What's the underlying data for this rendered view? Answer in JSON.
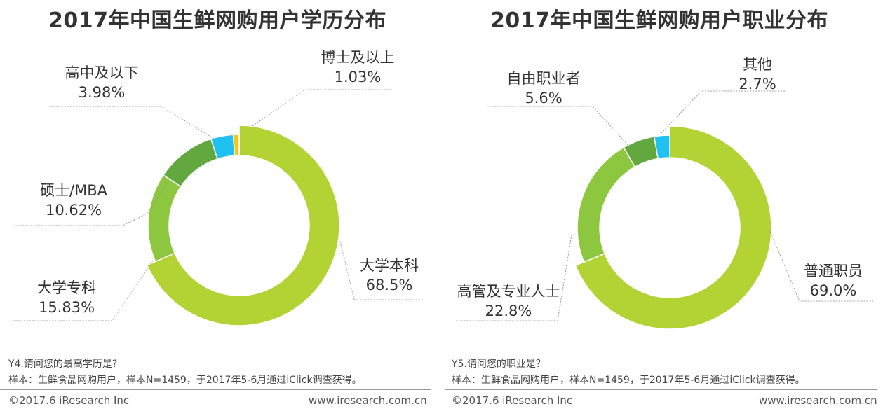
{
  "chart_data": [
    {
      "type": "pie",
      "variant": "donut",
      "title": "2017年中国生鲜网购用户学历分布",
      "labels": [
        "大学本科",
        "大学专科",
        "硕士/MBA",
        "高中及以下",
        "博士及以上"
      ],
      "values": [
        68.5,
        15.83,
        10.62,
        3.98,
        1.03
      ],
      "value_labels": [
        "68.5%",
        "15.83%",
        "10.62%",
        "3.98%",
        "1.03%"
      ],
      "colors": [
        "#b3d334",
        "#8dc63f",
        "#62a83f",
        "#1ec1f0",
        "#f7c61d"
      ],
      "question": "Y4.请问您的最高学历是?",
      "sample": "样本：生鲜食品网购用户，样本N=1459，于2017年5-6月通过iClick调查获得。"
    },
    {
      "type": "pie",
      "variant": "donut",
      "title": "2017年中国生鲜网购用户职业分布",
      "labels": [
        "普通职员",
        "高管及专业人士",
        "自由职业者",
        "其他"
      ],
      "values": [
        69.0,
        22.8,
        5.6,
        2.7
      ],
      "value_labels": [
        "69.0%",
        "22.8%",
        "5.6%",
        "2.7%"
      ],
      "colors": [
        "#b3d334",
        "#8dc63f",
        "#62a83f",
        "#1ec1f0"
      ],
      "question": "Y5.请问您的职业是？",
      "sample": "样本：生鲜食品网购用户，样本N=1459，于2017年5-6月通过iClick调查获得。"
    }
  ],
  "footer": {
    "copyright": "©2017.6 iResearch Inc",
    "url": "www.iresearch.com.cn"
  }
}
